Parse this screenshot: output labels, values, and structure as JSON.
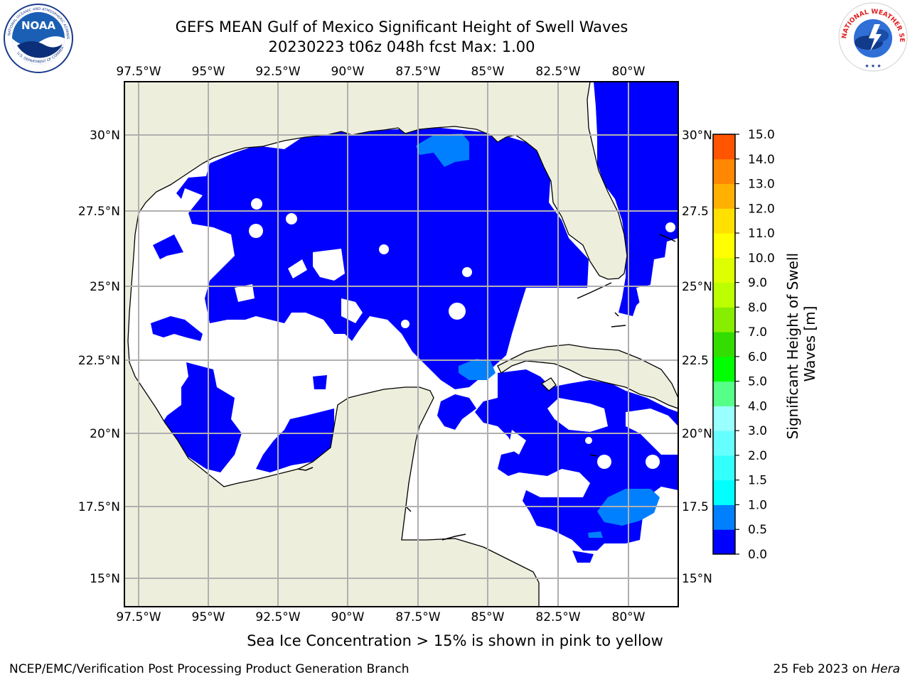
{
  "title_line1": "GEFS MEAN Gulf of Mexico Significant Height of Swell Waves",
  "title_line2": "20230223 t06z 048h fcst   Max: 1.00",
  "logos": {
    "left": {
      "name": "NOAA",
      "ring_text": "NATIONAL OCEANIC AND ATMOSPHERIC ADMINISTRATION",
      "bottom_text": "U.S. DEPARTMENT OF COMMERCE"
    },
    "right": {
      "ring_text": "NATIONAL WEATHER SERVICE"
    }
  },
  "map": {
    "lon_ticks": [
      "97.5°W",
      "95°W",
      "92.5°W",
      "90°W",
      "87.5°W",
      "85°W",
      "82.5°W",
      "80°W"
    ],
    "lat_ticks_left": [
      "30°N",
      "27.5°N",
      "25°N",
      "22.5°N",
      "20°N",
      "17.5°N",
      "15°N"
    ],
    "lat_ticks_right": [
      "30°N",
      "27.5",
      "25°N",
      "22.5",
      "20°N",
      "17.5",
      "15°N"
    ],
    "colors": {
      "land": "#eeeedd",
      "ocean_none": "#ffffff",
      "swell_0_0.5": "#0000ff",
      "swell_0.5_1": "#0080ff",
      "grid": "#b0b0b0",
      "coast": "#000000"
    }
  },
  "colorbar": {
    "title_line1": "Significant Height of Swell",
    "title_line2": "Waves [m]",
    "tick_labels": [
      "0.0",
      "0.5",
      "1.0",
      "1.5",
      "2.0",
      "3.0",
      "4.0",
      "5.0",
      "6.0",
      "7.0",
      "8.0",
      "9.0",
      "10.0",
      "11.0",
      "12.0",
      "13.0",
      "14.0",
      "15.0"
    ],
    "colors": [
      "#0000ff",
      "#0080ff",
      "#00ffff",
      "#33ffff",
      "#66ffff",
      "#99ffff",
      "#55ff88",
      "#00ff00",
      "#33dd00",
      "#88ee00",
      "#bbff00",
      "#ddff00",
      "#ffff00",
      "#ffe000",
      "#ffb000",
      "#ff8800",
      "#ff5500",
      "#ff2200",
      "#ff0000"
    ]
  },
  "caption": "Sea Ice Concentration > 15% is shown in pink to yellow",
  "footer_left": "NCEP/EMC/Verification Post Processing Product Generation Branch",
  "footer_date": "25 Feb 2023 on ",
  "footer_host": "Hera"
}
